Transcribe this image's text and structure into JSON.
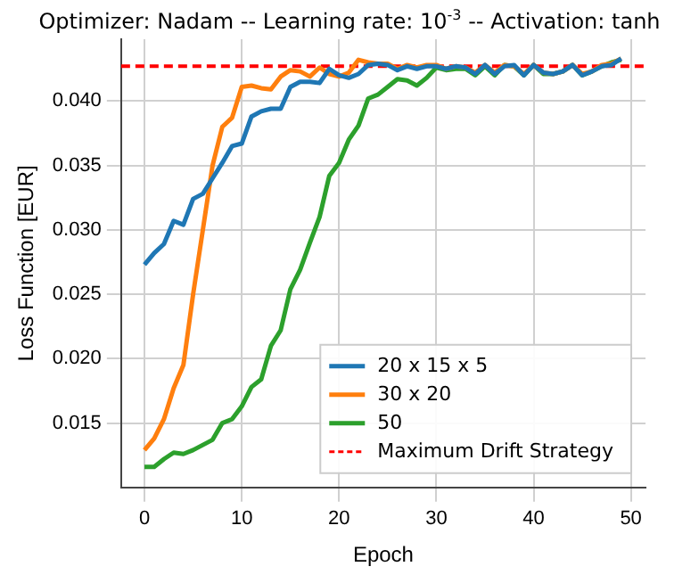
{
  "chart_data": {
    "type": "line",
    "title": "Optimizer: Nadam -- Learning rate: 10$^{-3}$ -- Activation: tanh",
    "xlabel": "Epoch",
    "ylabel": "Loss Function [EUR]",
    "x": [
      0,
      1,
      2,
      3,
      4,
      5,
      6,
      7,
      8,
      9,
      10,
      11,
      12,
      13,
      14,
      15,
      16,
      17,
      18,
      19,
      20,
      21,
      22,
      23,
      24,
      25,
      26,
      27,
      28,
      29,
      30,
      31,
      32,
      33,
      34,
      35,
      36,
      37,
      38,
      39,
      40,
      41,
      42,
      43,
      44,
      45,
      46,
      47,
      48,
      49
    ],
    "series": [
      {
        "name": "20 x 15 x 5",
        "color": "#1f77b4",
        "values": [
          0.0273,
          0.0282,
          0.0289,
          0.0307,
          0.0304,
          0.0324,
          0.0328,
          0.034,
          0.0352,
          0.0365,
          0.0367,
          0.0388,
          0.0392,
          0.0394,
          0.0394,
          0.0411,
          0.0415,
          0.0415,
          0.0414,
          0.0425,
          0.042,
          0.0418,
          0.0421,
          0.0428,
          0.0429,
          0.0428,
          0.0424,
          0.0427,
          0.0425,
          0.0427,
          0.0427,
          0.0425,
          0.0427,
          0.0426,
          0.0421,
          0.0428,
          0.0421,
          0.0427,
          0.0428,
          0.042,
          0.0428,
          0.0422,
          0.0421,
          0.0423,
          0.0428,
          0.042,
          0.0423,
          0.0427,
          0.0428,
          0.0433
        ]
      },
      {
        "name": "30 x 20",
        "color": "#ff7f0e",
        "values": [
          0.0129,
          0.0138,
          0.0153,
          0.0177,
          0.0195,
          0.025,
          0.03,
          0.035,
          0.038,
          0.0387,
          0.0411,
          0.0412,
          0.041,
          0.0409,
          0.0419,
          0.0424,
          0.0423,
          0.0419,
          0.0426,
          0.0421,
          0.0419,
          0.0422,
          0.0432,
          0.043,
          0.0429,
          0.0429,
          0.0425,
          0.0428,
          0.0426,
          0.0428,
          0.0428,
          0.0425,
          0.0427,
          0.0426,
          0.0422,
          0.0428,
          0.0422,
          0.0428,
          0.0427,
          0.0421,
          0.0428,
          0.0422,
          0.0421,
          0.0423,
          0.0428,
          0.0421,
          0.0423,
          0.0428,
          0.0429,
          0.0433
        ]
      },
      {
        "name": "50",
        "color": "#2ca02c",
        "values": [
          0.0116,
          0.0116,
          0.0122,
          0.0127,
          0.0126,
          0.0129,
          0.0133,
          0.0137,
          0.015,
          0.0153,
          0.0163,
          0.0178,
          0.0184,
          0.021,
          0.0222,
          0.0254,
          0.0269,
          0.029,
          0.031,
          0.0342,
          0.0352,
          0.037,
          0.0381,
          0.0402,
          0.0405,
          0.0411,
          0.0417,
          0.0416,
          0.0412,
          0.0418,
          0.0426,
          0.0424,
          0.0425,
          0.0425,
          0.042,
          0.0427,
          0.042,
          0.0428,
          0.0427,
          0.042,
          0.0428,
          0.0421,
          0.0421,
          0.0423,
          0.0428,
          0.042,
          0.0423,
          0.0427,
          0.043,
          0.0432
        ]
      }
    ],
    "ref_lines": [
      {
        "axis": "y",
        "value": 0.0427,
        "label": "Maximum Drift Strategy",
        "color": "#ff0000",
        "line_style": "dashed"
      }
    ],
    "xlim": [
      -2.4,
      51.5
    ],
    "xticks": [
      0,
      10,
      20,
      30,
      40,
      50
    ],
    "ylim": [
      0.01,
      0.0448
    ],
    "yticks": [
      {
        "value": 0.015,
        "label": "0.015"
      },
      {
        "value": 0.02,
        "label": "0.020"
      },
      {
        "value": 0.025,
        "label": "0.025"
      },
      {
        "value": 0.03,
        "label": "0.030"
      },
      {
        "value": 0.035,
        "label": "0.035"
      },
      {
        "value": 0.04,
        "label": "0.040"
      }
    ],
    "grid": true,
    "legend": "bottom right",
    "marker": "none",
    "line_style": "solid"
  }
}
